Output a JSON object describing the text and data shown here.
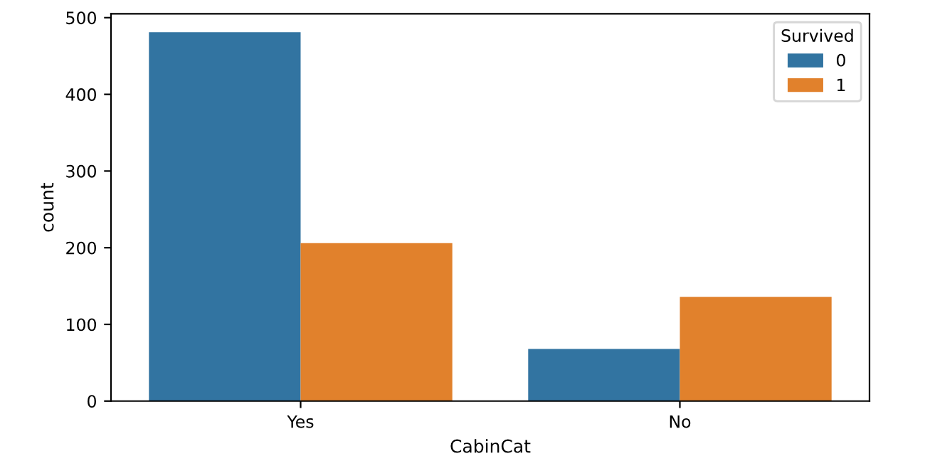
{
  "chart_data": {
    "type": "bar",
    "xlabel": "CabinCat",
    "ylabel": "count",
    "legend_title": "Survived",
    "categories": [
      "Yes",
      "No"
    ],
    "series": [
      {
        "name": "0",
        "color": "#3274a1",
        "values": [
          481,
          68
        ]
      },
      {
        "name": "1",
        "color": "#e1812c",
        "values": [
          206,
          136
        ]
      }
    ],
    "ylim": [
      0,
      505
    ],
    "yticks": [
      0,
      100,
      200,
      300,
      400,
      500
    ],
    "grid": false,
    "legend": "top right"
  }
}
